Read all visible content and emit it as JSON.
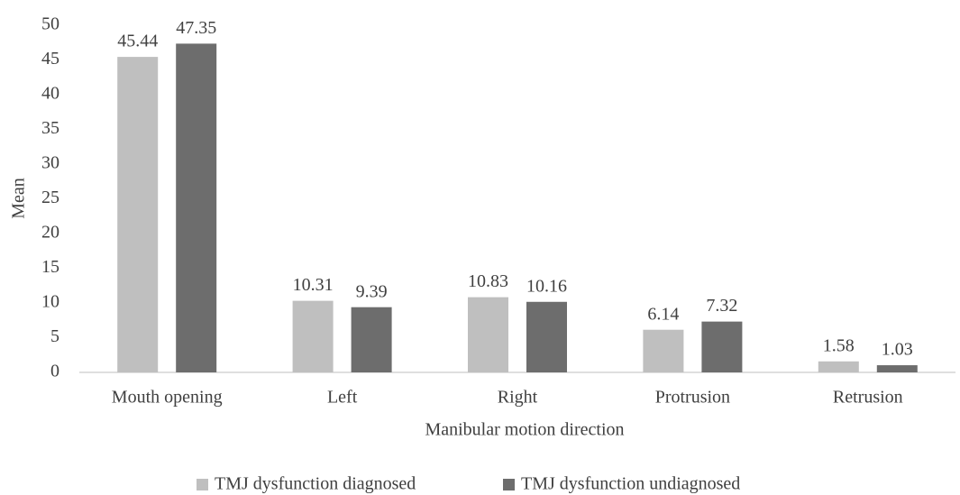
{
  "chart_data": {
    "type": "bar",
    "x_label": "Manibular motion direction",
    "y_label": "Mean",
    "categories": [
      "Mouth opening",
      "Left",
      "Right",
      "Protrusion",
      "Retrusion"
    ],
    "series": [
      {
        "name": "TMJ dysfunction diagnosed",
        "color": "#bfbfbf",
        "values": [
          45.44,
          10.31,
          10.83,
          6.14,
          1.58
        ]
      },
      {
        "name": "TMJ dysfunction undiagnosed",
        "color": "#6d6d6d",
        "values": [
          47.35,
          9.39,
          10.16,
          7.32,
          1.03
        ]
      }
    ],
    "ylim": [
      0,
      50
    ],
    "yticks": [
      0,
      5,
      10,
      15,
      20,
      25,
      30,
      35,
      40,
      45,
      50
    ],
    "grid": false,
    "legend": "bottom"
  }
}
